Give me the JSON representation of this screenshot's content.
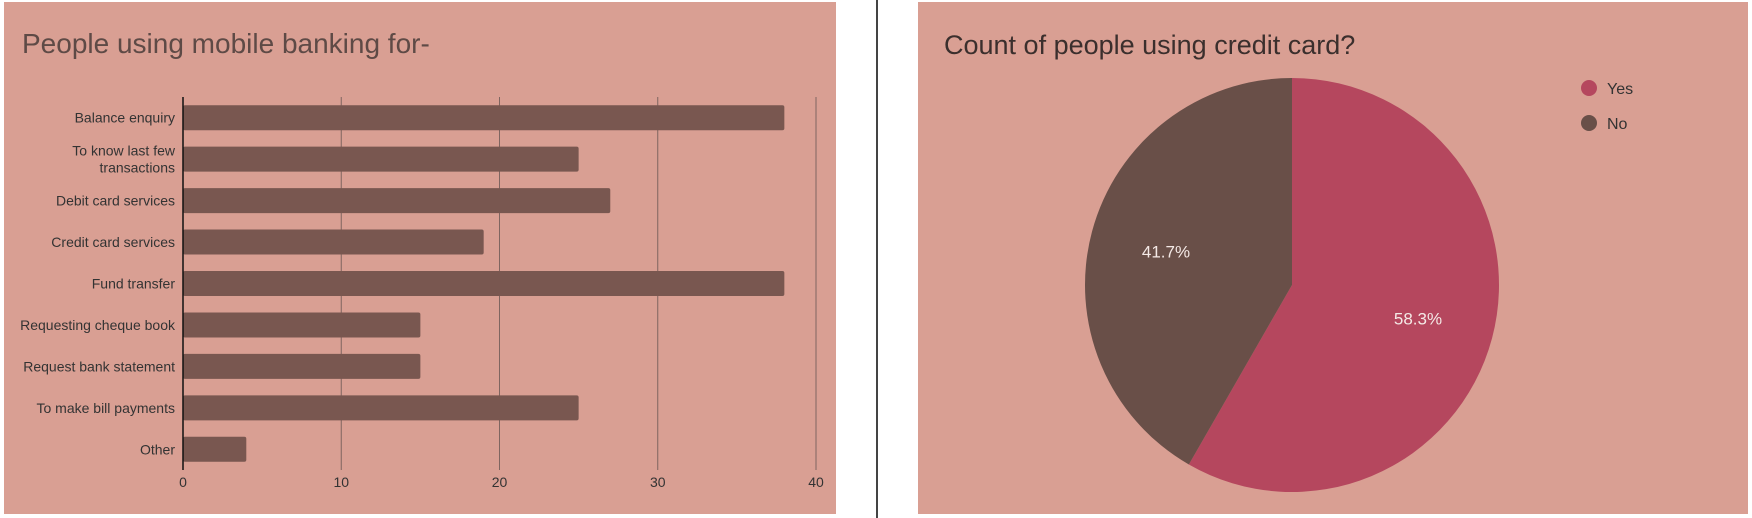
{
  "chart_data": [
    {
      "type": "bar",
      "orientation": "horizontal",
      "title": "People using mobile banking for-",
      "categories": [
        [
          "Balance enquiry"
        ],
        [
          "To know last few",
          "transactions"
        ],
        [
          "Debit card services"
        ],
        [
          "Credit card services"
        ],
        [
          "Fund transfer"
        ],
        [
          "Requesting cheque book"
        ],
        [
          "Request bank statement"
        ],
        [
          "To make bill payments"
        ],
        [
          "Other"
        ]
      ],
      "values": [
        38,
        25,
        27,
        19,
        38,
        15,
        15,
        25,
        4
      ],
      "xlim": [
        0,
        40
      ],
      "ticks": [
        "0",
        "10",
        "20",
        "30",
        "40"
      ],
      "grid": true,
      "bar_color": "#795750"
    },
    {
      "type": "pie",
      "title": "Count of people using credit card?",
      "slices": [
        {
          "label": "Yes",
          "value": 58.3,
          "display": "58.3%",
          "color": "#b5475e"
        },
        {
          "label": "No",
          "value": 41.7,
          "display": "41.7%",
          "color": "#694f48"
        }
      ],
      "legend": "top-right"
    }
  ]
}
